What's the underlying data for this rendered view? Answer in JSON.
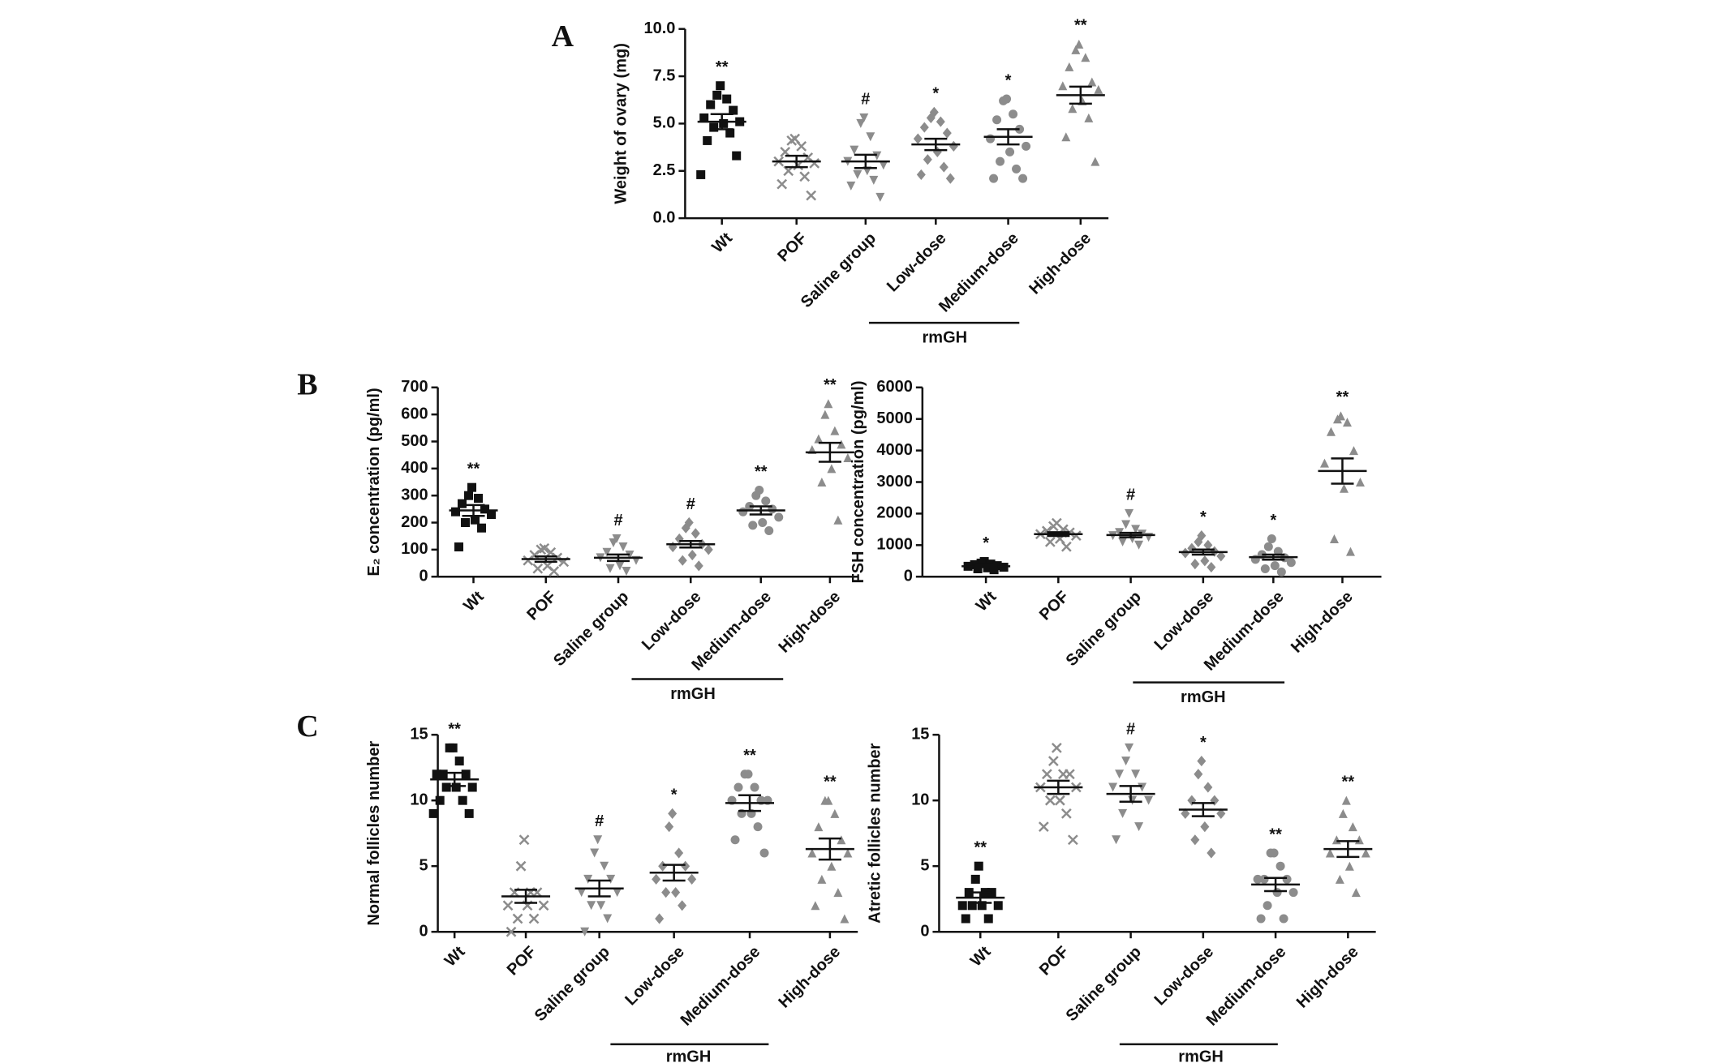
{
  "chart_data": [
    {
      "type": "dot",
      "panel": "A",
      "ylabel": "Weight of ovary (mg)",
      "group_label": "rmGH",
      "categories": [
        "Wt",
        "POF",
        "Saline group",
        "Low-dose",
        "Medium-dose",
        "High-dose"
      ],
      "markers": [
        "square",
        "cross",
        "triangle-down",
        "diamond",
        "circle",
        "triangle-up"
      ],
      "colors": [
        "#111111",
        "#8c8c8c",
        "#8c8c8c",
        "#8c8c8c",
        "#8c8c8c",
        "#8c8c8c"
      ],
      "ylim": [
        0,
        10
      ],
      "yticks": [
        {
          "value": 0,
          "label": "0.0"
        },
        {
          "value": 2.5,
          "label": "2.5"
        },
        {
          "value": 5,
          "label": "5.0"
        },
        {
          "value": 7.5,
          "label": "7.5"
        },
        {
          "value": 10,
          "label": "10.0"
        }
      ],
      "groups": [
        {
          "mean": 5.1,
          "sem": 0.4,
          "annotation": "**",
          "points": [
            7.0,
            6.5,
            6.3,
            6.0,
            5.7,
            5.3,
            5.1,
            5.0,
            4.8,
            4.5,
            4.1,
            3.3,
            2.3
          ]
        },
        {
          "mean": 3.0,
          "sem": 0.3,
          "annotation": null,
          "points": [
            4.2,
            4.1,
            3.8,
            3.5,
            3.2,
            3.0,
            2.9,
            2.8,
            2.5,
            2.2,
            1.8,
            1.2
          ]
        },
        {
          "mean": 3.0,
          "sem": 0.35,
          "annotation": "#",
          "points": [
            5.3,
            5.0,
            4.3,
            3.6,
            3.3,
            3.0,
            2.8,
            2.5,
            2.3,
            2.0,
            1.7,
            1.1
          ]
        },
        {
          "mean": 3.9,
          "sem": 0.3,
          "annotation": "*",
          "points": [
            5.6,
            5.3,
            5.1,
            4.8,
            4.5,
            4.2,
            3.8,
            3.5,
            3.1,
            2.7,
            2.3,
            2.1
          ]
        },
        {
          "mean": 4.3,
          "sem": 0.4,
          "annotation": "*",
          "points": [
            6.3,
            6.2,
            5.5,
            5.2,
            4.7,
            4.2,
            3.8,
            3.5,
            3.0,
            2.6,
            2.1,
            2.1
          ]
        },
        {
          "mean": 6.5,
          "sem": 0.45,
          "annotation": "**",
          "points": [
            9.2,
            8.9,
            8.5,
            8.0,
            7.2,
            7.0,
            6.8,
            6.2,
            5.8,
            5.3,
            4.3,
            3.0
          ]
        }
      ]
    },
    {
      "type": "dot",
      "panel": "B",
      "ylabel": "E₂ concentration (pg/ml)",
      "group_label": "rmGH",
      "categories": [
        "Wt",
        "POF",
        "Saline group",
        "Low-dose",
        "Medium-dose",
        "High-dose"
      ],
      "markers": [
        "square",
        "cross",
        "triangle-down",
        "diamond",
        "circle",
        "triangle-up"
      ],
      "colors": [
        "#111111",
        "#8c8c8c",
        "#8c8c8c",
        "#8c8c8c",
        "#8c8c8c",
        "#8c8c8c"
      ],
      "ylim": [
        0,
        700
      ],
      "yticks": [
        0,
        100,
        200,
        300,
        400,
        500,
        600,
        700
      ],
      "groups": [
        {
          "mean": 245,
          "sem": 20,
          "annotation": "**",
          "points": [
            330,
            300,
            290,
            270,
            250,
            240,
            230,
            210,
            200,
            180,
            110
          ]
        },
        {
          "mean": 65,
          "sem": 10,
          "annotation": null,
          "points": [
            105,
            100,
            90,
            80,
            70,
            60,
            55,
            40,
            30,
            20
          ]
        },
        {
          "mean": 70,
          "sem": 12,
          "annotation": "#",
          "points": [
            140,
            125,
            110,
            90,
            80,
            70,
            60,
            40,
            30,
            20
          ]
        },
        {
          "mean": 120,
          "sem": 12,
          "annotation": "#",
          "points": [
            200,
            180,
            160,
            140,
            120,
            110,
            100,
            80,
            60,
            40
          ]
        },
        {
          "mean": 245,
          "sem": 15,
          "annotation": "**",
          "points": [
            320,
            300,
            280,
            260,
            250,
            240,
            220,
            200,
            190,
            170
          ]
        },
        {
          "mean": 460,
          "sem": 35,
          "annotation": "**",
          "points": [
            640,
            600,
            540,
            510,
            490,
            470,
            440,
            400,
            350,
            210
          ]
        }
      ]
    },
    {
      "type": "dot",
      "ylabel": "FSH concentration (pg/ml)",
      "group_label": "rmGH",
      "categories": [
        "Wt",
        "POF",
        "Saline group",
        "Low-dose",
        "Medium-dose",
        "High-dose"
      ],
      "markers": [
        "square",
        "cross",
        "triangle-down",
        "diamond",
        "circle",
        "triangle-up"
      ],
      "colors": [
        "#111111",
        "#8c8c8c",
        "#8c8c8c",
        "#8c8c8c",
        "#8c8c8c",
        "#8c8c8c"
      ],
      "ylim": [
        0,
        6000
      ],
      "yticks": [
        0,
        1000,
        2000,
        3000,
        4000,
        5000,
        6000
      ],
      "groups": [
        {
          "mean": 330,
          "sem": 30,
          "annotation": "*",
          "points": [
            480,
            430,
            400,
            380,
            350,
            330,
            300,
            280,
            250,
            220
          ]
        },
        {
          "mean": 1350,
          "sem": 60,
          "annotation": null,
          "points": [
            1700,
            1600,
            1500,
            1450,
            1400,
            1350,
            1300,
            1200,
            1100,
            950
          ]
        },
        {
          "mean": 1320,
          "sem": 70,
          "annotation": "#",
          "points": [
            2000,
            1650,
            1500,
            1400,
            1350,
            1300,
            1250,
            1200,
            1100,
            1000
          ]
        },
        {
          "mean": 780,
          "sem": 80,
          "annotation": "*",
          "points": [
            1300,
            1100,
            1000,
            900,
            800,
            750,
            650,
            500,
            400,
            300
          ]
        },
        {
          "mean": 620,
          "sem": 80,
          "annotation": "*",
          "points": [
            1200,
            950,
            800,
            700,
            600,
            550,
            450,
            350,
            250,
            150
          ]
        },
        {
          "mean": 3350,
          "sem": 400,
          "annotation": "**",
          "points": [
            5100,
            5000,
            4900,
            4600,
            4000,
            3600,
            3000,
            2800,
            1200,
            800
          ]
        }
      ]
    },
    {
      "type": "dot",
      "panel": "C",
      "ylabel": "Normal follicles number",
      "group_label": "rmGH",
      "categories": [
        "Wt",
        "POF",
        "Saline group",
        "Low-dose",
        "Medium-dose",
        "High-dose"
      ],
      "markers": [
        "square",
        "cross",
        "triangle-down",
        "diamond",
        "circle",
        "triangle-up"
      ],
      "colors": [
        "#111111",
        "#8c8c8c",
        "#8c8c8c",
        "#8c8c8c",
        "#8c8c8c",
        "#8c8c8c"
      ],
      "ylim": [
        0,
        15
      ],
      "yticks": [
        0,
        5,
        10,
        15
      ],
      "groups": [
        {
          "mean": 11.6,
          "sem": 0.5,
          "annotation": "**",
          "points": [
            14,
            14,
            13,
            12,
            12,
            12,
            11,
            11,
            11,
            10,
            10,
            9,
            9
          ]
        },
        {
          "mean": 2.7,
          "sem": 0.5,
          "annotation": null,
          "points": [
            7,
            5,
            3,
            3,
            3,
            2,
            2,
            2,
            1,
            1,
            0
          ]
        },
        {
          "mean": 3.3,
          "sem": 0.6,
          "annotation": "#",
          "points": [
            7,
            6,
            5,
            4,
            4,
            3,
            3,
            2,
            2,
            1,
            0
          ]
        },
        {
          "mean": 4.5,
          "sem": 0.6,
          "annotation": "*",
          "points": [
            9,
            8,
            6,
            5,
            5,
            4,
            4,
            3,
            3,
            2,
            1
          ]
        },
        {
          "mean": 9.8,
          "sem": 0.6,
          "annotation": "**",
          "points": [
            12,
            12,
            11,
            11,
            10,
            10,
            10,
            9,
            9,
            8,
            7,
            6
          ]
        },
        {
          "mean": 6.3,
          "sem": 0.8,
          "annotation": "**",
          "points": [
            10,
            10,
            9,
            8,
            7,
            6,
            6,
            5,
            4,
            3,
            2,
            1
          ]
        }
      ]
    },
    {
      "type": "dot",
      "ylabel": "Atretic follicles number",
      "group_label": "rmGH",
      "categories": [
        "Wt",
        "POF",
        "Saline group",
        "Low-dose",
        "Medium-dose",
        "High-dose"
      ],
      "markers": [
        "square",
        "cross",
        "triangle-down",
        "diamond",
        "circle",
        "triangle-up"
      ],
      "colors": [
        "#111111",
        "#8c8c8c",
        "#8c8c8c",
        "#8c8c8c",
        "#8c8c8c",
        "#8c8c8c"
      ],
      "ylim": [
        0,
        15
      ],
      "yticks": [
        0,
        5,
        10,
        15
      ],
      "groups": [
        {
          "mean": 2.6,
          "sem": 0.4,
          "annotation": "**",
          "points": [
            5,
            4,
            3,
            3,
            3,
            2,
            2,
            2,
            2,
            1,
            1
          ]
        },
        {
          "mean": 11,
          "sem": 0.5,
          "annotation": null,
          "points": [
            14,
            13,
            12,
            12,
            12,
            11,
            11,
            10,
            10,
            9,
            8,
            7
          ]
        },
        {
          "mean": 10.5,
          "sem": 0.6,
          "annotation": "#",
          "points": [
            14,
            13,
            12,
            12,
            11,
            11,
            10,
            10,
            9,
            8,
            7
          ]
        },
        {
          "mean": 9.3,
          "sem": 0.5,
          "annotation": "*",
          "points": [
            13,
            12,
            11,
            10,
            10,
            9,
            9,
            8,
            7,
            6
          ]
        },
        {
          "mean": 3.6,
          "sem": 0.5,
          "annotation": "**",
          "points": [
            6,
            6,
            5,
            4,
            4,
            4,
            3,
            3,
            2,
            1,
            1
          ]
        },
        {
          "mean": 6.3,
          "sem": 0.6,
          "annotation": "**",
          "points": [
            10,
            9,
            8,
            7,
            7,
            6,
            6,
            5,
            4,
            3
          ]
        }
      ]
    }
  ]
}
